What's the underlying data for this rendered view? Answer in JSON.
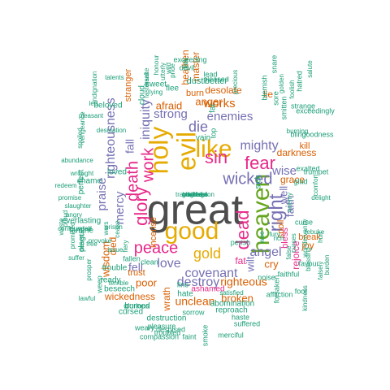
{
  "palette": {
    "grey": "#4d4d4d",
    "orange": "#d95f02",
    "teal": "#1b9e77",
    "purple": "#7570b3",
    "magenta": "#e7298a",
    "green": "#66a61e",
    "gold": "#e6ab02"
  },
  "words": [
    {
      "text": "great",
      "color": "grey"
    },
    {
      "text": "good",
      "color": "gold"
    },
    {
      "text": "heaven",
      "color": "green"
    },
    {
      "text": "evil",
      "color": "gold"
    },
    {
      "text": "like",
      "color": "gold"
    },
    {
      "text": "holy",
      "color": "gold"
    },
    {
      "text": "sin",
      "color": "magenta"
    },
    {
      "text": "peace",
      "color": "magenta"
    },
    {
      "text": "fear",
      "color": "magenta"
    },
    {
      "text": "right",
      "color": "purple"
    },
    {
      "text": "gold",
      "color": "gold"
    },
    {
      "text": "glory",
      "color": "magenta"
    },
    {
      "text": "work",
      "color": "magenta"
    },
    {
      "text": "death",
      "color": "magenta"
    },
    {
      "text": "wicked",
      "color": "purple"
    },
    {
      "text": "dead",
      "color": "magenta"
    },
    {
      "text": "mighty",
      "color": "purple"
    },
    {
      "text": "righteousness",
      "color": "purple"
    },
    {
      "text": "angel",
      "color": "purple"
    },
    {
      "text": "love",
      "color": "purple"
    },
    {
      "text": "covenant",
      "color": "purple"
    },
    {
      "text": "destroy",
      "color": "purple"
    },
    {
      "text": "righteous",
      "color": "orange"
    },
    {
      "text": "die",
      "color": "purple"
    },
    {
      "text": "iniquity",
      "color": "purple"
    },
    {
      "text": "enemies",
      "color": "purple"
    },
    {
      "text": "strong",
      "color": "purple"
    },
    {
      "text": "fall",
      "color": "purple"
    },
    {
      "text": "praise",
      "color": "purple"
    },
    {
      "text": "mercy",
      "color": "purple"
    },
    {
      "text": "wise",
      "color": "purple"
    },
    {
      "text": "faith",
      "color": "purple"
    },
    {
      "text": "well",
      "color": "purple"
    },
    {
      "text": "works",
      "color": "orange"
    },
    {
      "text": "anger",
      "color": "orange"
    },
    {
      "text": "fell",
      "color": "purple"
    },
    {
      "text": "unclean",
      "color": "orange"
    },
    {
      "text": "poor",
      "color": "orange"
    },
    {
      "text": "wisdom",
      "color": "orange"
    },
    {
      "text": "wilt",
      "color": "purple"
    },
    {
      "text": "cry",
      "color": "orange"
    },
    {
      "text": "rejoice",
      "color": "magenta"
    },
    {
      "text": "broken",
      "color": "orange"
    },
    {
      "text": "darkness",
      "color": "orange"
    },
    {
      "text": "grace",
      "color": "orange"
    },
    {
      "text": "afraid",
      "color": "orange"
    },
    {
      "text": "desolate",
      "color": "orange"
    },
    {
      "text": "joy",
      "color": "orange"
    },
    {
      "text": "spoil",
      "color": "orange"
    },
    {
      "text": "heathen",
      "color": "orange"
    },
    {
      "text": "master",
      "color": "orange"
    },
    {
      "text": "died",
      "color": "orange"
    },
    {
      "text": "wrath",
      "color": "orange"
    },
    {
      "text": "trust",
      "color": "orange"
    },
    {
      "text": "wickedness",
      "color": "orange"
    },
    {
      "text": "break",
      "color": "orange"
    },
    {
      "text": "kill",
      "color": "orange"
    },
    {
      "text": "burn",
      "color": "orange"
    },
    {
      "text": "stranger",
      "color": "orange"
    },
    {
      "text": "fat",
      "color": "magenta"
    },
    {
      "text": "bless",
      "color": "magenta"
    },
    {
      "text": "lie",
      "color": "orange"
    },
    {
      "text": "incense",
      "color": "orange"
    },
    {
      "text": "dust",
      "color": "teal"
    },
    {
      "text": "better",
      "color": "teal"
    },
    {
      "text": "sweet",
      "color": "teal"
    },
    {
      "text": "flee",
      "color": "teal"
    },
    {
      "text": "beloved",
      "color": "teal"
    },
    {
      "text": "loved",
      "color": "teal"
    },
    {
      "text": "shame",
      "color": "teal"
    },
    {
      "text": "vain",
      "color": "teal"
    },
    {
      "text": "top",
      "color": "teal"
    },
    {
      "text": "sick",
      "color": "teal"
    },
    {
      "text": "far",
      "color": "teal"
    },
    {
      "text": "cloud",
      "color": "teal"
    },
    {
      "text": "everlasting",
      "color": "teal"
    },
    {
      "text": "famine",
      "color": "teal"
    },
    {
      "text": "plague",
      "color": "teal"
    },
    {
      "text": "perfect",
      "color": "teal"
    },
    {
      "text": "ashamed",
      "color": "magenta"
    },
    {
      "text": "perish",
      "color": "teal"
    },
    {
      "text": "fallen",
      "color": "teal"
    },
    {
      "text": "clean",
      "color": "teal"
    },
    {
      "text": "trouble",
      "color": "teal"
    },
    {
      "text": "ready",
      "color": "teal"
    },
    {
      "text": "beseech",
      "color": "teal"
    },
    {
      "text": "hate",
      "color": "teal"
    },
    {
      "text": "fine",
      "color": "teal"
    },
    {
      "text": "burned",
      "color": "teal"
    },
    {
      "text": "cursed",
      "color": "teal"
    },
    {
      "text": "sorrow",
      "color": "teal"
    },
    {
      "text": "destruction",
      "color": "teal"
    },
    {
      "text": "pleasure",
      "color": "teal"
    },
    {
      "text": "abomination",
      "color": "teal"
    },
    {
      "text": "reproach",
      "color": "teal"
    },
    {
      "text": "haste",
      "color": "teal"
    },
    {
      "text": "suffered",
      "color": "teal"
    },
    {
      "text": "merciful",
      "color": "teal"
    },
    {
      "text": "compassion",
      "color": "teal"
    },
    {
      "text": "faint",
      "color": "teal"
    },
    {
      "text": "smoke",
      "color": "teal"
    },
    {
      "text": "despised",
      "color": "teal"
    },
    {
      "text": "weary",
      "color": "teal"
    },
    {
      "text": "troubled",
      "color": "teal"
    },
    {
      "text": "glorious",
      "color": "teal"
    },
    {
      "text": "lawful",
      "color": "teal"
    },
    {
      "text": "weep",
      "color": "teal"
    },
    {
      "text": "noise",
      "color": "teal"
    },
    {
      "text": "satisfied",
      "color": "teal"
    },
    {
      "text": "affliction",
      "color": "teal"
    },
    {
      "text": "fool",
      "color": "teal"
    },
    {
      "text": "forsaken",
      "color": "teal"
    },
    {
      "text": "kindness",
      "color": "teal"
    },
    {
      "text": "faithful",
      "color": "teal"
    },
    {
      "text": "favour",
      "color": "teal"
    },
    {
      "text": "glad",
      "color": "teal"
    },
    {
      "text": "curse",
      "color": "teal"
    },
    {
      "text": "rebuke",
      "color": "teal"
    },
    {
      "text": "enemy",
      "color": "teal"
    },
    {
      "text": "exalted",
      "color": "teal"
    },
    {
      "text": "trumpet",
      "color": "teal"
    },
    {
      "text": "comfort",
      "color": "teal"
    },
    {
      "text": "delight",
      "color": "teal"
    },
    {
      "text": "blind",
      "color": "teal"
    },
    {
      "text": "goodness",
      "color": "teal"
    },
    {
      "text": "strange",
      "color": "teal"
    },
    {
      "text": "burning",
      "color": "teal"
    },
    {
      "text": "exceedingly",
      "color": "teal"
    },
    {
      "text": "smitten",
      "color": "teal"
    },
    {
      "text": "sore",
      "color": "teal"
    },
    {
      "text": "golden",
      "color": "teal"
    },
    {
      "text": "snare",
      "color": "teal"
    },
    {
      "text": "foolish",
      "color": "teal"
    },
    {
      "text": "hatred",
      "color": "teal"
    },
    {
      "text": "salute",
      "color": "teal"
    },
    {
      "text": "blemish",
      "color": "teal"
    },
    {
      "text": "pleased",
      "color": "teal"
    },
    {
      "text": "exceeding",
      "color": "teal"
    },
    {
      "text": "devil",
      "color": "teal"
    },
    {
      "text": "lead",
      "color": "teal"
    },
    {
      "text": "precious",
      "color": "teal"
    },
    {
      "text": "dark",
      "color": "teal"
    },
    {
      "text": "pride",
      "color": "teal"
    },
    {
      "text": "utterly",
      "color": "teal"
    },
    {
      "text": "honour",
      "color": "teal"
    },
    {
      "text": "wild",
      "color": "teal"
    },
    {
      "text": "fastersake",
      "color": "teal"
    },
    {
      "text": "lying",
      "color": "teal"
    },
    {
      "text": "hard",
      "color": "teal"
    },
    {
      "text": "talents",
      "color": "teal"
    },
    {
      "text": "led",
      "color": "teal"
    },
    {
      "text": "desolation",
      "color": "teal"
    },
    {
      "text": "indignation",
      "color": "teal"
    },
    {
      "text": "pleasant",
      "color": "teal"
    },
    {
      "text": "spoiled",
      "color": "teal"
    },
    {
      "text": "vengeance",
      "color": "teal"
    },
    {
      "text": "abundance",
      "color": "teal"
    },
    {
      "text": "wrought",
      "color": "teal"
    },
    {
      "text": "redeem",
      "color": "teal"
    },
    {
      "text": "promise",
      "color": "teal"
    },
    {
      "text": "slaughter",
      "color": "teal"
    },
    {
      "text": "angry",
      "color": "teal"
    },
    {
      "text": "proud",
      "color": "teal"
    },
    {
      "text": "confounded",
      "color": "teal"
    },
    {
      "text": "weak",
      "color": "teal"
    },
    {
      "text": "desert",
      "color": "teal"
    },
    {
      "text": "waste",
      "color": "teal"
    },
    {
      "text": "promised",
      "color": "teal"
    },
    {
      "text": "free",
      "color": "teal"
    },
    {
      "text": "suffer",
      "color": "teal"
    },
    {
      "text": "issue",
      "color": "teal"
    },
    {
      "text": "terrible",
      "color": "teal"
    },
    {
      "text": "prosper",
      "color": "teal"
    },
    {
      "text": "provoke",
      "color": "teal"
    },
    {
      "text": "prison",
      "color": "teal"
    },
    {
      "text": "wars",
      "color": "teal"
    },
    {
      "text": "cease",
      "color": "teal"
    },
    {
      "text": "fury",
      "color": "teal"
    },
    {
      "text": "woe",
      "color": "teal"
    },
    {
      "text": "rich",
      "color": "teal"
    },
    {
      "text": "fiery",
      "color": "teal"
    },
    {
      "text": "curses",
      "color": "teal"
    },
    {
      "text": "wondervanity",
      "color": "teal"
    },
    {
      "text": "blessing",
      "color": "teal"
    },
    {
      "text": "falsely",
      "color": "teal"
    },
    {
      "text": "false",
      "color": "teal"
    },
    {
      "text": "hurt",
      "color": "teal"
    },
    {
      "text": "burden",
      "color": "teal"
    },
    {
      "text": "gladness",
      "color": "teal"
    },
    {
      "text": "bondage",
      "color": "teal"
    },
    {
      "text": "transgression",
      "color": "teal"
    },
    {
      "text": "mischief",
      "color": "teal"
    },
    {
      "text": "killed",
      "color": "teal"
    }
  ]
}
